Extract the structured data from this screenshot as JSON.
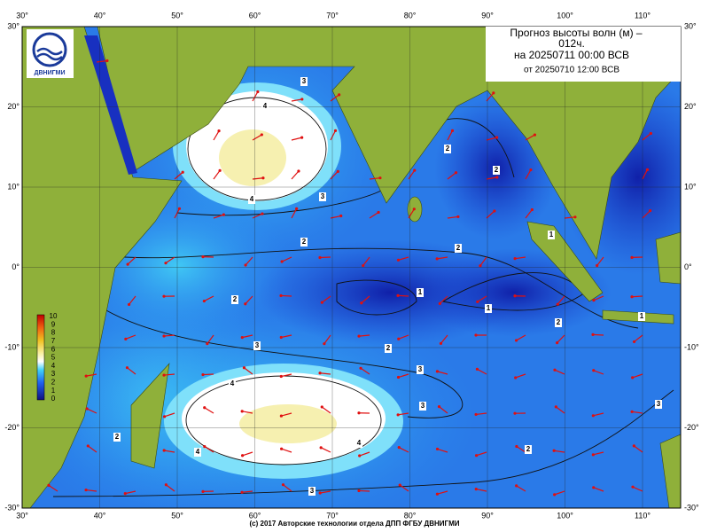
{
  "header": {
    "title": "Прогноз высоты волн (м) –",
    "lead": "012ч.",
    "valid": "на 20250711 00:00 ВСВ",
    "issued": "от 20250710 12:00 ВСВ"
  },
  "logo": "ДВНИГМИ",
  "lon_labels": [
    "30°",
    "40°",
    "50°",
    "60°",
    "70°",
    "80°",
    "90°",
    "100°",
    "110°"
  ],
  "lat_labels": [
    "30°",
    "20°",
    "10°",
    "0°",
    "-10°",
    "-20°",
    "-30°"
  ],
  "colorbar": {
    "ticks": [
      10,
      9,
      8,
      7,
      6,
      5,
      4,
      3,
      2,
      1,
      0
    ]
  },
  "contour_labels": [
    "3",
    "4",
    "4",
    "3",
    "2",
    "2",
    "2",
    "1",
    "2",
    "1",
    "1",
    "2",
    "3",
    "2",
    "2",
    "1",
    "3",
    "3",
    "4",
    "4",
    "4",
    "2",
    "2",
    "3",
    "3"
  ],
  "footer": "(c) 2017 Авторские технологии отдела ДПП ФГБУ ДВНИГМИ"
}
